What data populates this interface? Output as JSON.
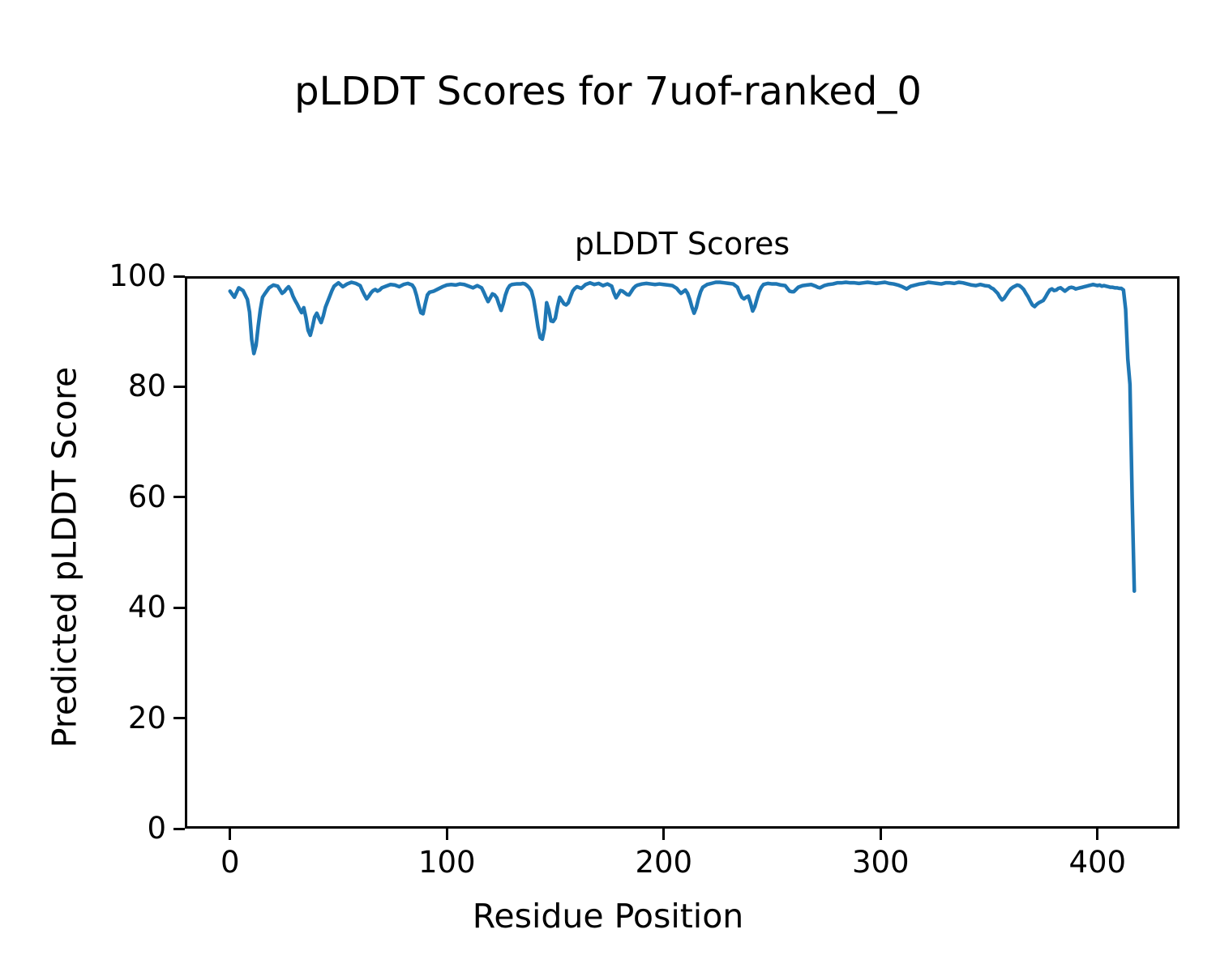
{
  "figure": {
    "suptitle": "pLDDT Scores for 7uof-ranked_0"
  },
  "chart_data": {
    "type": "line",
    "title": "pLDDT Scores",
    "xlabel": "Residue Position",
    "ylabel": "Predicted pLDDT Score",
    "xlim": [
      -20.85,
      437.85
    ],
    "ylim": [
      0,
      100
    ],
    "xticks": [
      0,
      100,
      200,
      300,
      400
    ],
    "yticks": [
      0,
      20,
      40,
      60,
      80,
      100
    ],
    "grid": false,
    "legend": null,
    "line_color": "#1f77b4",
    "line_width": 4.5,
    "series": [
      {
        "name": "pLDDT",
        "x": [
          0,
          2,
          4,
          6,
          8,
          9,
          10,
          11,
          12,
          13,
          14,
          15,
          16,
          18,
          20,
          22,
          24,
          25,
          26,
          27,
          28,
          29,
          30,
          31,
          32,
          33,
          34,
          35,
          36,
          37,
          38,
          39,
          40,
          41,
          42,
          43,
          44,
          45,
          46,
          47,
          48,
          50,
          52,
          54,
          56,
          58,
          60,
          61,
          62,
          63,
          64,
          65,
          66,
          67,
          68,
          69,
          70,
          72,
          74,
          76,
          78,
          80,
          82,
          84,
          85,
          86,
          87,
          88,
          89,
          90,
          91,
          92,
          94,
          96,
          98,
          100,
          102,
          104,
          106,
          108,
          110,
          112,
          114,
          116,
          117,
          118,
          119,
          120,
          121,
          122,
          123,
          124,
          125,
          126,
          127,
          128,
          129,
          130,
          132,
          134,
          135,
          136,
          137,
          138,
          139,
          140,
          141,
          142,
          143,
          144,
          145,
          146,
          147,
          148,
          149,
          150,
          151,
          152,
          153,
          154,
          155,
          156,
          157,
          158,
          159,
          160,
          162,
          164,
          166,
          168,
          170,
          172,
          174,
          176,
          177,
          178,
          179,
          180,
          181,
          182,
          183,
          184,
          185,
          186,
          187,
          188,
          190,
          192,
          194,
          196,
          198,
          200,
          202,
          204,
          206,
          207,
          208,
          209,
          210,
          211,
          212,
          213,
          214,
          215,
          216,
          217,
          218,
          220,
          222,
          224,
          226,
          228,
          230,
          232,
          234,
          235,
          236,
          237,
          238,
          239,
          240,
          241,
          242,
          243,
          244,
          245,
          246,
          248,
          250,
          252,
          254,
          256,
          257,
          258,
          259,
          260,
          261,
          262,
          264,
          266,
          268,
          270,
          271,
          272,
          273,
          274,
          276,
          278,
          280,
          282,
          284,
          286,
          288,
          290,
          292,
          294,
          296,
          298,
          300,
          302,
          304,
          306,
          308,
          310,
          312,
          314,
          316,
          318,
          320,
          322,
          324,
          326,
          328,
          330,
          332,
          334,
          336,
          338,
          340,
          342,
          344,
          346,
          348,
          350,
          351,
          352,
          353,
          354,
          355,
          356,
          357,
          358,
          359,
          360,
          361,
          362,
          363,
          364,
          365,
          366,
          367,
          368,
          369,
          370,
          371,
          372,
          373,
          374,
          375,
          376,
          377,
          378,
          379,
          380,
          381,
          382,
          383,
          384,
          385,
          386,
          387,
          388,
          389,
          390,
          391,
          392,
          393,
          394,
          395,
          396,
          397,
          398,
          399,
          400,
          401,
          402,
          403,
          404,
          405,
          406,
          407,
          408,
          409,
          410,
          411,
          412,
          413,
          414,
          415,
          416,
          417
        ],
        "y": [
          97.3,
          96.2,
          97.9,
          97.4,
          95.8,
          93.5,
          88.5,
          86.0,
          87.5,
          91.0,
          94.0,
          96.2,
          96.8,
          97.9,
          98.4,
          98.2,
          96.9,
          97.2,
          97.7,
          98.1,
          97.5,
          96.4,
          95.6,
          94.9,
          94.1,
          93.4,
          94.3,
          92.5,
          90.2,
          89.3,
          90.8,
          92.6,
          93.3,
          92.4,
          91.6,
          92.8,
          94.4,
          95.4,
          96.4,
          97.4,
          98.2,
          98.8,
          98.1,
          98.6,
          98.9,
          98.7,
          98.3,
          97.4,
          96.6,
          95.9,
          96.4,
          97.0,
          97.4,
          97.6,
          97.3,
          97.5,
          97.9,
          98.2,
          98.5,
          98.4,
          98.1,
          98.5,
          98.7,
          98.4,
          97.8,
          96.5,
          94.8,
          93.4,
          93.2,
          95.0,
          96.6,
          97.1,
          97.3,
          97.7,
          98.1,
          98.4,
          98.5,
          98.4,
          98.6,
          98.5,
          98.2,
          97.9,
          98.3,
          97.9,
          97.1,
          96.2,
          95.4,
          96.1,
          96.8,
          96.6,
          96.1,
          94.9,
          93.8,
          95.0,
          96.6,
          97.7,
          98.3,
          98.5,
          98.6,
          98.6,
          98.7,
          98.6,
          98.3,
          97.9,
          97.3,
          95.8,
          93.4,
          90.8,
          88.9,
          88.6,
          90.5,
          95.2,
          93.9,
          91.9,
          91.8,
          92.4,
          94.5,
          96.2,
          95.6,
          95.0,
          94.8,
          95.2,
          96.3,
          97.3,
          97.8,
          98.1,
          97.8,
          98.5,
          98.8,
          98.5,
          98.7,
          98.3,
          98.6,
          98.2,
          97.0,
          96.1,
          96.7,
          97.4,
          97.3,
          97.0,
          96.7,
          96.6,
          97.2,
          97.8,
          98.2,
          98.4,
          98.6,
          98.7,
          98.6,
          98.5,
          98.6,
          98.5,
          98.4,
          98.3,
          97.8,
          97.3,
          96.9,
          97.2,
          97.5,
          96.9,
          95.8,
          94.4,
          93.3,
          94.3,
          95.9,
          97.2,
          98.0,
          98.5,
          98.7,
          98.9,
          98.9,
          98.8,
          98.7,
          98.6,
          98.0,
          97.0,
          96.2,
          95.9,
          96.2,
          96.4,
          95.2,
          93.7,
          94.5,
          95.9,
          97.2,
          98.0,
          98.5,
          98.7,
          98.6,
          98.6,
          98.4,
          98.3,
          97.8,
          97.3,
          97.2,
          97.2,
          97.6,
          98.0,
          98.3,
          98.4,
          98.5,
          98.2,
          98.0,
          97.9,
          98.1,
          98.3,
          98.5,
          98.6,
          98.8,
          98.8,
          98.9,
          98.8,
          98.8,
          98.7,
          98.8,
          98.9,
          98.8,
          98.7,
          98.8,
          98.9,
          98.7,
          98.6,
          98.4,
          98.1,
          97.7,
          98.2,
          98.4,
          98.6,
          98.7,
          98.9,
          98.8,
          98.7,
          98.6,
          98.8,
          98.8,
          98.7,
          98.9,
          98.8,
          98.6,
          98.4,
          98.3,
          98.5,
          98.3,
          98.2,
          97.9,
          97.7,
          97.3,
          96.9,
          96.2,
          95.7,
          96.0,
          96.6,
          97.2,
          97.7,
          98.0,
          98.2,
          98.4,
          98.3,
          98.0,
          97.6,
          96.9,
          96.3,
          95.5,
          94.8,
          94.5,
          94.9,
          95.2,
          95.4,
          95.6,
          96.2,
          96.9,
          97.5,
          97.7,
          97.4,
          97.5,
          97.8,
          97.9,
          97.6,
          97.3,
          97.6,
          97.9,
          98.0,
          97.9,
          97.7,
          97.8,
          97.9,
          98.0,
          98.1,
          98.2,
          98.3,
          98.4,
          98.5,
          98.4,
          98.3,
          98.4,
          98.2,
          98.3,
          98.2,
          98.1,
          98.0,
          98.0,
          97.9,
          97.9,
          97.8,
          97.8,
          97.5,
          94.0,
          85.0,
          80.4,
          60.0,
          43.0
        ]
      }
    ]
  }
}
